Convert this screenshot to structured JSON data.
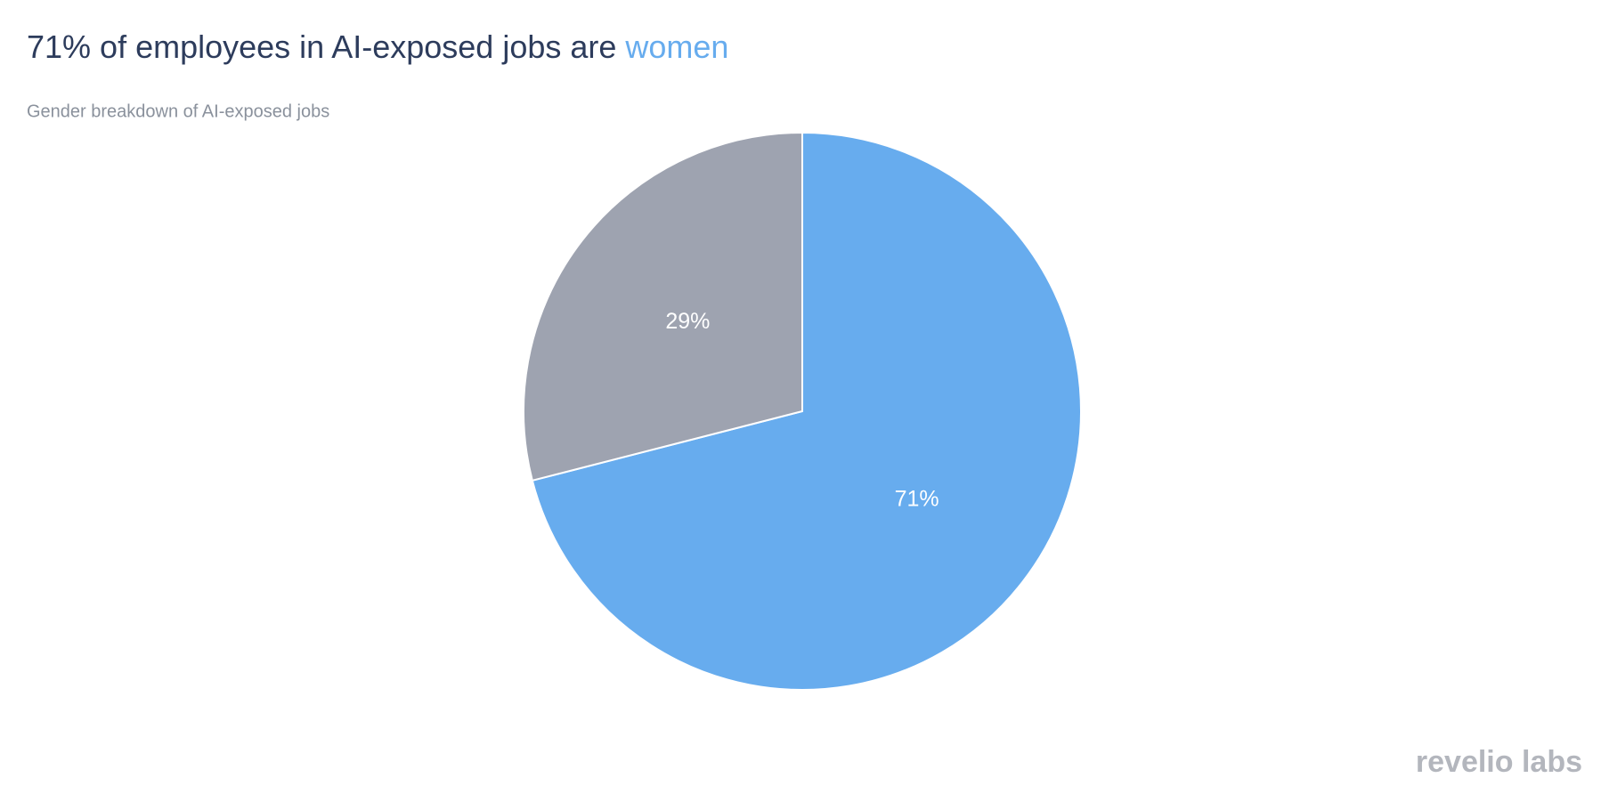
{
  "chart_data": {
    "type": "pie",
    "title": "71% of employees in AI-exposed jobs are",
    "title_highlight": "women",
    "subtitle": "Gender breakdown of AI-exposed jobs",
    "values": [
      71,
      29
    ],
    "value_labels": [
      "71%",
      "29%"
    ],
    "colors": [
      "#67acee",
      "#9ea3b0"
    ],
    "logo": "revelio labs"
  }
}
